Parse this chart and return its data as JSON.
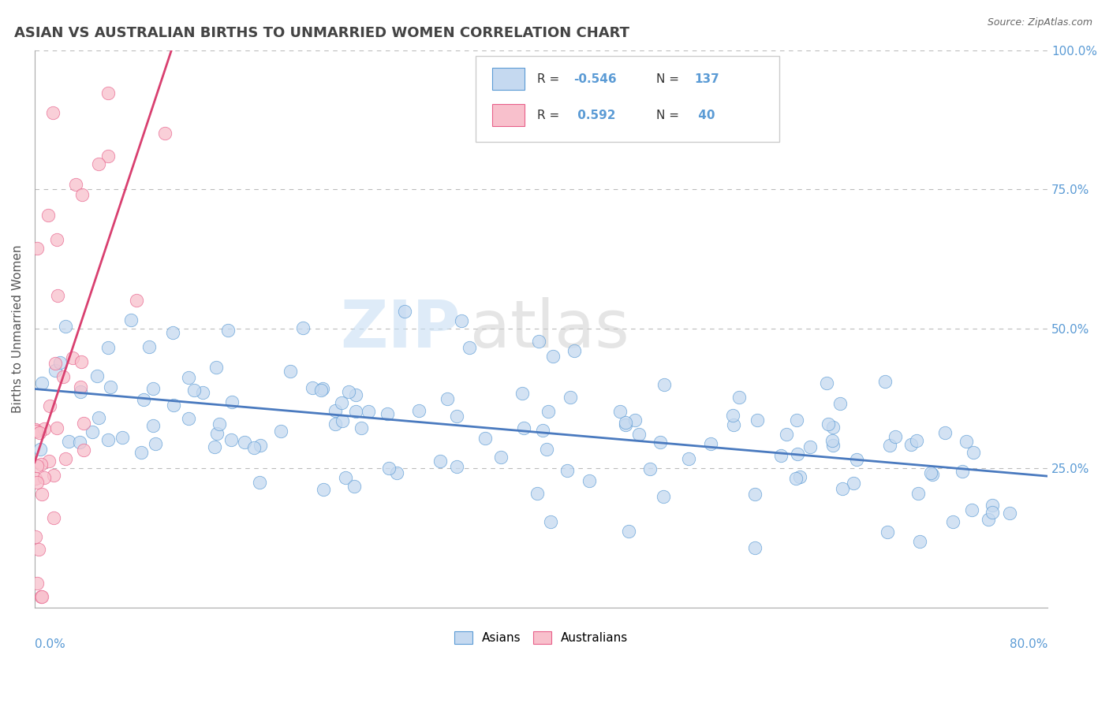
{
  "title": "ASIAN VS AUSTRALIAN BIRTHS TO UNMARRIED WOMEN CORRELATION CHART",
  "source": "Source: ZipAtlas.com",
  "ylabel": "Births to Unmarried Women",
  "xmin": 0.0,
  "xmax": 0.8,
  "ymin": 0.0,
  "ymax": 1.0,
  "yticks": [
    0.0,
    0.25,
    0.5,
    0.75,
    1.0
  ],
  "ytick_labels": [
    "",
    "25.0%",
    "50.0%",
    "75.0%",
    "100.0%"
  ],
  "blue_R": -0.546,
  "blue_N": 137,
  "pink_R": 0.592,
  "pink_N": 40,
  "blue_fill": "#c5d9f0",
  "pink_fill": "#f8c0cc",
  "blue_edge": "#5b9bd5",
  "pink_edge": "#e8608a",
  "blue_line": "#4a7abf",
  "pink_line": "#d94070",
  "background_color": "#ffffff",
  "grid_color": "#bbbbbb",
  "title_color": "#444444",
  "axis_label_color": "#5b9bd5",
  "title_fontsize": 13,
  "source_fontsize": 9,
  "ylabel_fontsize": 11,
  "tick_fontsize": 11,
  "legend_fontsize": 11
}
